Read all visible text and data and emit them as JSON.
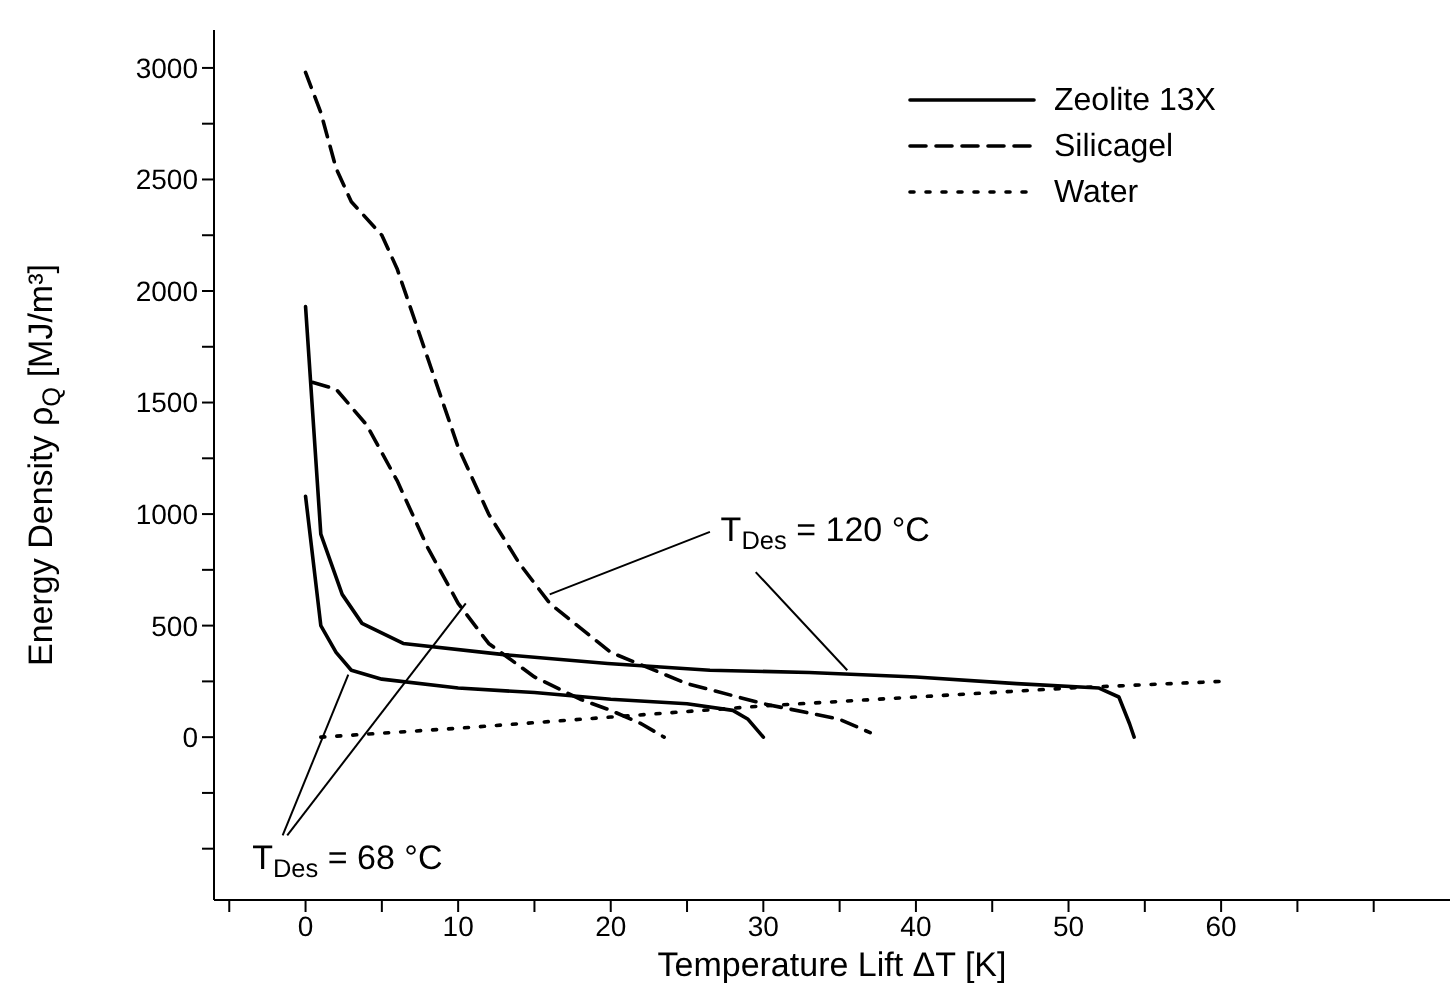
{
  "chart_data": {
    "type": "line",
    "xlabel": "Temperature Lift ΔT [K]",
    "ylabel": "Energy Density ρ$_{Q}$  [MJ/m³]",
    "xlim": [
      -6,
      75
    ],
    "ylim": [
      -730,
      3170
    ],
    "xticks": [
      {
        "value": -5,
        "label": null
      },
      0,
      {
        "value": 5,
        "label": null
      },
      10,
      {
        "value": 15,
        "label": null
      },
      20,
      {
        "value": 25,
        "label": null
      },
      30,
      {
        "value": 35,
        "label": null
      },
      40,
      {
        "value": 45,
        "label": null
      },
      50,
      {
        "value": 55,
        "label": null
      },
      60,
      {
        "value": 65,
        "label": null
      },
      {
        "value": 70,
        "label": null
      }
    ],
    "yticks": [
      {
        "value": -500,
        "label": null
      },
      {
        "value": -250,
        "label": null
      },
      0,
      {
        "value": 250,
        "label": null
      },
      500,
      {
        "value": 750,
        "label": null
      },
      1000,
      {
        "value": 1250,
        "label": null
      },
      1500,
      {
        "value": 1750,
        "label": null
      },
      2000,
      {
        "value": 2250,
        "label": null
      },
      2500,
      {
        "value": 2750,
        "label": null
      },
      3000
    ],
    "grid": false,
    "legend": "top right",
    "marker": "none",
    "series": [
      {
        "name": "Zeolite 13X",
        "color": "#000000",
        "line_style": "solid",
        "x": [
          0,
          1,
          2.4,
          3.7,
          6.4,
          13,
          19.8,
          26.5,
          33,
          40,
          46.6,
          52,
          53.3,
          54,
          54.3
        ],
        "values": [
          1930,
          910,
          640,
          510,
          420,
          370,
          330,
          300,
          290,
          270,
          240,
          220,
          180,
          60,
          0
        ]
      },
      {
        "color": "#000000",
        "line_style": "solid",
        "x": [
          0,
          1,
          2,
          3,
          5,
          10,
          15,
          20,
          25,
          28,
          29,
          30
        ],
        "values": [
          1080,
          500,
          380,
          300,
          260,
          220,
          200,
          170,
          150,
          120,
          80,
          0
        ]
      },
      {
        "name": "Silicagel",
        "color": "#000000",
        "line_style": "dashed",
        "x": [
          0,
          1,
          2,
          3,
          5,
          6,
          8,
          10,
          12,
          14,
          16,
          20,
          25,
          30,
          35,
          37
        ],
        "values": [
          2980,
          2800,
          2550,
          2400,
          2250,
          2100,
          1700,
          1300,
          1000,
          780,
          600,
          380,
          240,
          150,
          80,
          20
        ]
      },
      {
        "color": "#000000",
        "line_style": "dashed",
        "x": [
          0.5,
          2,
          4,
          6,
          8,
          10,
          12,
          15,
          18,
          20,
          22,
          23.5
        ],
        "values": [
          1590,
          1560,
          1400,
          1150,
          850,
          600,
          420,
          270,
          170,
          120,
          60,
          0
        ]
      },
      {
        "name": "Water",
        "color": "#000000",
        "line_style": "dotted",
        "x": [
          1,
          10,
          20,
          30,
          40,
          50,
          60
        ],
        "values": [
          0,
          40,
          90,
          140,
          180,
          220,
          250
        ]
      }
    ],
    "annotations": [
      {
        "text": "T$_{Des}$ = 120 °C",
        "x": 16,
        "y": 640
      },
      {
        "text": "T$_{Des}$ = 68 °C",
        "x": 2.8,
        "y": 280
      }
    ]
  }
}
